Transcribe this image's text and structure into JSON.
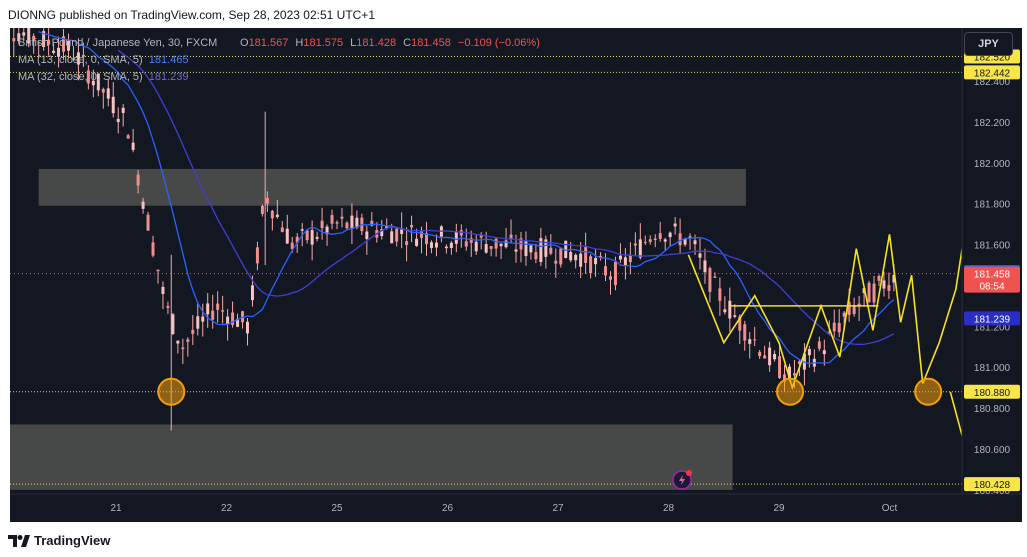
{
  "header": {
    "published": "DIONNG published on TradingView.com, Sep 28, 2023 02:51 UTC+1"
  },
  "legend": {
    "symbol": "British Pound / Japanese Yen, 30, FXCM",
    "o_label": "O",
    "o_value": "181.567",
    "h_label": "H",
    "h_value": "181.575",
    "l_label": "L",
    "l_value": "181.428",
    "c_label": "C",
    "c_value": "181.458",
    "change": "−0.109 (−0.06%)",
    "ma1_label": "MA (13, close, 0, SMA, 5)",
    "ma1_value": "181.465",
    "ma2_label": "MA (32, close, 0, SMA, 5)",
    "ma2_value": "181.239"
  },
  "currency_button": "JPY",
  "footer": {
    "brand": "TradingView"
  },
  "colors": {
    "background": "#131722",
    "bull": "#26a69a",
    "bear": "#ef5350",
    "candle": "#f7a9a8",
    "ma_fast": "#2962ff",
    "ma_slow": "#3f3fd3",
    "drawing": "#f5e31e",
    "level": "#e0d56a",
    "circle": "#f59e0b",
    "box": "#5a5b55"
  },
  "chart_data": {
    "type": "candlestick",
    "symbol": "GBPJPY",
    "timeframe": "30",
    "ylim": [
      180.38,
      182.62
    ],
    "price_ticks": [
      "182.400",
      "182.200",
      "182.000",
      "181.800",
      "181.600",
      "181.400",
      "181.200",
      "181.000",
      "180.800",
      "180.600",
      "180.400"
    ],
    "x_ticks": [
      "21",
      "22",
      "25",
      "26",
      "27",
      "28",
      "29",
      "Oct"
    ],
    "x_tick_index": [
      0,
      1,
      2,
      3,
      4,
      5,
      6,
      7
    ],
    "price_labels": [
      {
        "value": 182.52,
        "text": "182.520",
        "kind": "level"
      },
      {
        "value": 182.442,
        "text": "182.442",
        "kind": "level"
      },
      {
        "value": 181.465,
        "text": "181.465",
        "kind": "ma_fast"
      },
      {
        "value": 181.458,
        "text": "181.458",
        "sub": "08:54",
        "kind": "last"
      },
      {
        "value": 181.239,
        "text": "181.239",
        "kind": "ma_slow"
      },
      {
        "value": 180.88,
        "text": "180.880",
        "kind": "level"
      },
      {
        "value": 180.428,
        "text": "180.428",
        "kind": "level"
      }
    ],
    "horizontal_levels": [
      182.52,
      182.442,
      180.88,
      180.428
    ],
    "zones": [
      {
        "x_from": 20.3,
        "x_to": 26.7,
        "y_from": 181.79,
        "y_to": 181.97
      },
      {
        "x_from": 20.0,
        "x_to": 26.58,
        "y_from": 180.4,
        "y_to": 180.72
      }
    ],
    "circles": [
      {
        "x": 21.5,
        "y": 180.88
      },
      {
        "x": 27.1,
        "y": 180.88
      },
      {
        "x": 28.35,
        "y": 180.88
      }
    ],
    "projection_path": [
      [
        26.18,
        181.55
      ],
      [
        26.5,
        181.12
      ],
      [
        26.78,
        181.35
      ],
      [
        27.0,
        181.12
      ],
      [
        27.12,
        180.9
      ],
      [
        27.38,
        181.3
      ],
      [
        27.55,
        181.05
      ],
      [
        27.7,
        181.58
      ],
      [
        27.85,
        181.18
      ],
      [
        28.0,
        181.65
      ],
      [
        28.1,
        181.22
      ],
      [
        28.2,
        181.45
      ],
      [
        28.3,
        180.92
      ],
      [
        28.45,
        181.12
      ],
      [
        28.6,
        181.38
      ],
      [
        28.85,
        182.25
      ]
    ],
    "projection_path_2": [
      [
        28.55,
        180.88
      ],
      [
        28.68,
        180.62
      ],
      [
        28.85,
        180.82
      ],
      [
        29.05,
        180.38
      ]
    ],
    "neckline": {
      "x_from": 26.55,
      "x_to": 27.9,
      "y": 181.3
    },
    "series": [
      {
        "name": "MA (13, close, 0, SMA, 5)",
        "last": 181.465
      },
      {
        "name": "MA (32, close, 0, SMA, 5)",
        "last": 181.239
      }
    ]
  }
}
